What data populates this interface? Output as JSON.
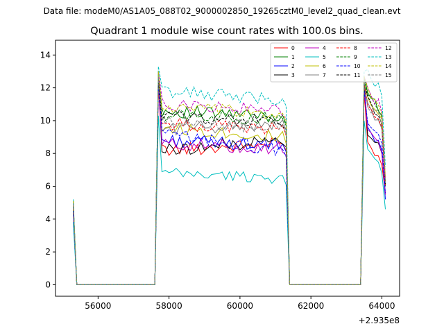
{
  "header": {
    "file_line": "Data file: modeM0/AS1A05_088T02_9000002850_19265cztM0_level2_quad_clean.evt"
  },
  "chart_data": {
    "type": "line",
    "title": "Quadrant 1 module wise count rates with 100.0s bins.",
    "xlabel": "",
    "ylabel": "",
    "x_offset_label": "+2.935e8",
    "xlim": [
      54800,
      64500
    ],
    "ylim": [
      -0.7,
      14.9
    ],
    "x_ticks": [
      56000,
      58000,
      60000,
      62000,
      64000
    ],
    "x_tick_labels": [
      "56000",
      "58000",
      "60000",
      "62000",
      "64000"
    ],
    "y_ticks": [
      0,
      2,
      4,
      6,
      8,
      10,
      12,
      14
    ],
    "y_tick_labels": [
      "0",
      "2",
      "4",
      "6",
      "8",
      "10",
      "12",
      "14"
    ],
    "grid": false,
    "legend_position": "top-right",
    "segments": [
      {
        "x_start": 55300,
        "x_end": 55400,
        "state": "rise"
      },
      {
        "x_start": 55400,
        "x_end": 57600,
        "state": "zero"
      },
      {
        "x_start": 57700,
        "x_end": 61300,
        "state": "active"
      },
      {
        "x_start": 61400,
        "x_end": 63400,
        "state": "zero"
      },
      {
        "x_start": 63500,
        "x_end": 64100,
        "state": "active"
      }
    ],
    "series": [
      {
        "name": "0",
        "color": "#ff0000",
        "dash": "solid",
        "start": 4.6,
        "peak": 12.0,
        "level": 8.2,
        "level2": 8.6,
        "lastA": 7.3,
        "lastB": 5.6
      },
      {
        "name": "1",
        "color": "#008000",
        "dash": "solid",
        "start": 5.1,
        "peak": 13.0,
        "level": 10.6,
        "level2": 10.2,
        "lastA": 10.3,
        "lastB": 6.0
      },
      {
        "name": "2",
        "color": "#0000ff",
        "dash": "solid",
        "start": 4.3,
        "peak": 12.4,
        "level": 8.8,
        "level2": 8.5,
        "lastA": 8.2,
        "lastB": 5.2
      },
      {
        "name": "3",
        "color": "#000000",
        "dash": "solid",
        "start": 4.5,
        "peak": 12.6,
        "level": 8.2,
        "level2": 8.8,
        "lastA": 8.0,
        "lastB": 5.5
      },
      {
        "name": "4",
        "color": "#bf00bf",
        "dash": "solid",
        "start": 4.4,
        "peak": 12.2,
        "level": 8.6,
        "level2": 8.3,
        "lastA": 8.0,
        "lastB": 5.5
      },
      {
        "name": "5",
        "color": "#00bfbf",
        "dash": "solid",
        "start": 3.8,
        "peak": 10.3,
        "level": 6.8,
        "level2": 6.5,
        "lastA": 6.8,
        "lastB": 4.6
      },
      {
        "name": "6",
        "color": "#bfbf00",
        "dash": "solid",
        "start": 4.8,
        "peak": 12.6,
        "level": 9.6,
        "level2": 9.0,
        "lastA": 10.1,
        "lastB": 6.3
      },
      {
        "name": "7",
        "color": "#808080",
        "dash": "solid",
        "start": 4.9,
        "peak": 12.4,
        "level": 9.5,
        "level2": 9.8,
        "lastA": 9.5,
        "lastB": 6.1
      },
      {
        "name": "8",
        "color": "#ff0000",
        "dash": "dashed",
        "start": 4.8,
        "peak": 12.6,
        "level": 9.8,
        "level2": 9.5,
        "lastA": 9.6,
        "lastB": 6.0
      },
      {
        "name": "9",
        "color": "#008000",
        "dash": "dashed",
        "start": 5.0,
        "peak": 12.9,
        "level": 10.4,
        "level2": 10.1,
        "lastA": 10.2,
        "lastB": 6.2
      },
      {
        "name": "10",
        "color": "#0000ff",
        "dash": "dashed",
        "start": 4.5,
        "peak": 12.2,
        "level": 9.2,
        "level2": 8.2,
        "lastA": 8.6,
        "lastB": 5.6
      },
      {
        "name": "11",
        "color": "#000000",
        "dash": "dashed",
        "start": 4.8,
        "peak": 12.5,
        "level": 10.3,
        "level2": 9.9,
        "lastA": 9.8,
        "lastB": 6.1
      },
      {
        "name": "12",
        "color": "#bf00bf",
        "dash": "dashed",
        "start": 5.0,
        "peak": 13.0,
        "level": 11.0,
        "level2": 10.6,
        "lastA": 10.5,
        "lastB": 6.5
      },
      {
        "name": "13",
        "color": "#00bfbf",
        "dash": "dashed",
        "start": 5.2,
        "peak": 13.3,
        "level": 11.8,
        "level2": 11.3,
        "lastA": 11.5,
        "lastB": 7.2
      },
      {
        "name": "14",
        "color": "#bfbf00",
        "dash": "dashed",
        "start": 5.1,
        "peak": 13.0,
        "level": 10.8,
        "level2": 10.4,
        "lastA": 10.4,
        "lastB": 6.6
      },
      {
        "name": "15",
        "color": "#808080",
        "dash": "dashed",
        "start": 4.9,
        "peak": 12.7,
        "level": 9.9,
        "level2": 9.6,
        "lastA": 9.7,
        "lastB": 6.2
      }
    ]
  }
}
